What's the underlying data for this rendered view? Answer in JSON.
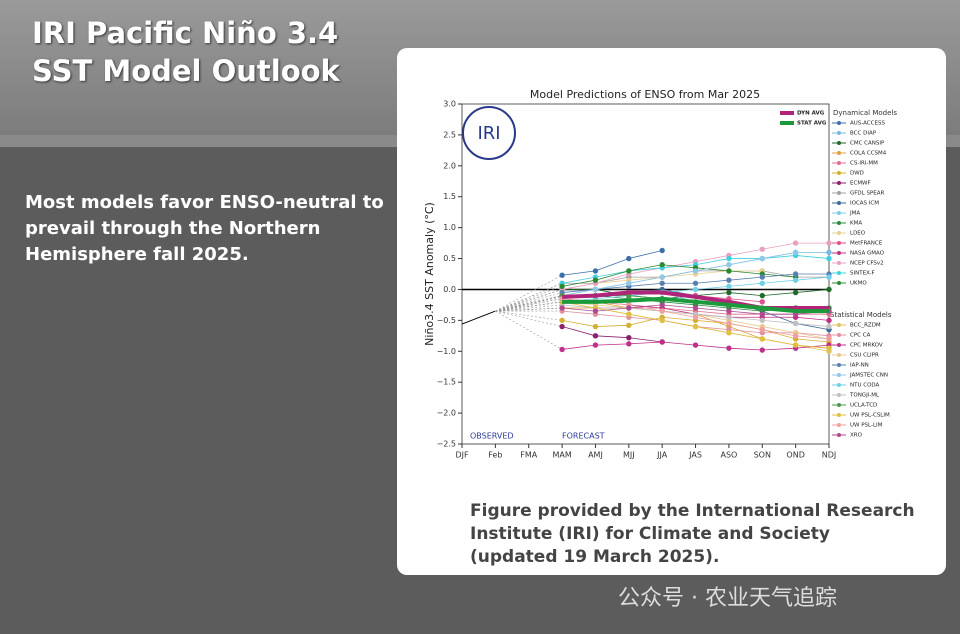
{
  "slide": {
    "title_lines": [
      "IRI Pacific Niño 3.4",
      "SST Model Outlook"
    ],
    "body_lines": [
      "Most models favor ENSO-neutral to",
      "prevail through the Northern",
      "Hemisphere fall 2025."
    ],
    "caption_lines": [
      "Figure provided by the International Research",
      "Institute (IRI) for Climate and Society",
      "(updated 19 March 2025)."
    ],
    "watermark": "公众号 · 农业天气追踪"
  },
  "chart_data": {
    "type": "line",
    "title": "Model Predictions of ENSO from Mar 2025",
    "y_label": "Niño3.4 SST Anomaly (°C)",
    "logo": "IRI",
    "annotations": [
      "OBSERVED",
      "FORECAST"
    ],
    "categories": [
      "DJF",
      "Feb",
      "FMA",
      "MAM",
      "AMJ",
      "MJJ",
      "JJA",
      "JAS",
      "ASO",
      "SON",
      "OND",
      "NDJ"
    ],
    "ylim": [
      -2.5,
      3.0
    ],
    "yticks": [
      {
        "value": -2.5,
        "label": "−2.5"
      },
      {
        "value": -2.0,
        "label": "−2.0"
      },
      {
        "value": -1.5,
        "label": "−1.5"
      },
      {
        "value": -1.0,
        "label": "−1.0"
      },
      {
        "value": -0.5,
        "label": "−0.5"
      },
      {
        "value": 0.0,
        "label": "0.0"
      },
      {
        "value": 0.5,
        "label": "0.5"
      },
      {
        "value": 1.0,
        "label": "1.0"
      },
      {
        "value": 1.5,
        "label": "1.5"
      },
      {
        "value": 2.0,
        "label": "2.0"
      },
      {
        "value": 2.5,
        "label": "2.5"
      },
      {
        "value": 3.0,
        "label": "3.0"
      }
    ],
    "observed": {
      "color": "#000000",
      "values": [
        -0.56,
        -0.35,
        null,
        null,
        null,
        null,
        null,
        null,
        null,
        null,
        null,
        null
      ]
    },
    "series": [
      {
        "name": "DYN AVG",
        "color": "#b0257a",
        "values": [
          null,
          null,
          null,
          -0.12,
          -0.1,
          -0.05,
          -0.05,
          -0.12,
          -0.2,
          -0.3,
          -0.3,
          -0.3
        ]
      },
      {
        "name": "STAT AVG",
        "color": "#1a9a3a",
        "values": [
          null,
          null,
          null,
          -0.2,
          -0.2,
          -0.18,
          -0.15,
          -0.2,
          -0.25,
          -0.3,
          -0.35,
          -0.35
        ]
      }
    ],
    "dynamical": {
      "title": "Dynamical Models",
      "series": [
        {
          "name": "AUS-ACCESS",
          "color": "#3d6fa8",
          "values": [
            null,
            null,
            null,
            0.23,
            0.3,
            0.5,
            0.63,
            null,
            null,
            null,
            null,
            null
          ]
        },
        {
          "name": "BCC DIAP",
          "color": "#7ab8e0",
          "values": [
            null,
            null,
            null,
            -0.1,
            0.0,
            0.1,
            0.2,
            0.3,
            0.4,
            0.5,
            0.6,
            0.6
          ]
        },
        {
          "name": "CMC CANSIP",
          "color": "#1f6b2a",
          "values": [
            null,
            null,
            null,
            0.0,
            0.0,
            -0.1,
            -0.15,
            -0.1,
            -0.05,
            -0.1,
            -0.05,
            0.0
          ]
        },
        {
          "name": "COLA CCSM4",
          "color": "#e0a040",
          "values": [
            null,
            null,
            null,
            -0.2,
            -0.2,
            -0.3,
            -0.35,
            -0.4,
            -0.6,
            -0.8,
            -0.9,
            -0.95
          ]
        },
        {
          "name": "CS-IRI-MM",
          "color": "#e07090",
          "values": [
            null,
            null,
            null,
            -0.3,
            -0.3,
            -0.3,
            -0.3,
            -0.35,
            -0.4,
            -0.4,
            -0.4,
            -0.4
          ]
        },
        {
          "name": "DWD",
          "color": "#d4b030",
          "values": [
            null,
            null,
            null,
            -0.5,
            -0.6,
            -0.58,
            -0.45,
            -0.5,
            -0.55,
            -0.65,
            -0.8,
            -0.85
          ]
        },
        {
          "name": "ECMWF",
          "color": "#8a2070",
          "values": [
            null,
            null,
            null,
            -0.6,
            -0.75,
            -0.78,
            -0.85,
            null,
            null,
            null,
            null,
            null
          ]
        },
        {
          "name": "GFDL SPEAR",
          "color": "#a0a0a0",
          "values": [
            null,
            null,
            null,
            0.1,
            0.1,
            0.2,
            0.2,
            0.3,
            0.3,
            0.3,
            0.2,
            0.2
          ]
        },
        {
          "name": "IOCAS ICM",
          "color": "#3a6a9a",
          "values": [
            null,
            null,
            null,
            -0.1,
            -0.1,
            -0.05,
            0.0,
            -0.1,
            -0.2,
            -0.35,
            -0.55,
            -0.65
          ]
        },
        {
          "name": "JMA",
          "color": "#80c8e8",
          "values": [
            null,
            null,
            null,
            -0.1,
            -0.1,
            -0.1,
            -0.05,
            -0.2,
            -0.25,
            -0.3,
            null,
            null
          ]
        },
        {
          "name": "KMA",
          "color": "#2a8a40",
          "values": [
            null,
            null,
            null,
            -0.1,
            -0.1,
            -0.15,
            -0.2,
            -0.25,
            -0.3,
            -0.35,
            -0.3,
            -0.3
          ]
        },
        {
          "name": "LDEO",
          "color": "#e8d090",
          "values": [
            null,
            null,
            null,
            0.0,
            0.1,
            0.15,
            0.2,
            0.25,
            0.3,
            0.3,
            null,
            null
          ]
        },
        {
          "name": "MetFRANCE",
          "color": "#e0508a",
          "values": [
            null,
            null,
            null,
            -0.1,
            -0.1,
            -0.05,
            -0.05,
            -0.1,
            -0.15,
            -0.2,
            null,
            null
          ]
        },
        {
          "name": "NASA GMAO",
          "color": "#c03080",
          "values": [
            null,
            null,
            null,
            -0.15,
            -0.2,
            -0.25,
            -0.3,
            -0.4,
            -0.45,
            -0.45,
            -0.45,
            -0.5
          ]
        },
        {
          "name": "NCEP CFSv2",
          "color": "#e8a0c0",
          "values": [
            null,
            null,
            null,
            0.0,
            0.1,
            0.25,
            0.35,
            0.45,
            0.55,
            0.65,
            0.75,
            0.75
          ]
        },
        {
          "name": "SINTEX-F",
          "color": "#40d0e0",
          "values": [
            null,
            null,
            null,
            0.1,
            0.2,
            0.3,
            0.35,
            0.4,
            0.5,
            0.5,
            0.55,
            0.5
          ]
        },
        {
          "name": "UKMO",
          "color": "#2a8a30",
          "values": [
            null,
            null,
            null,
            0.05,
            0.15,
            0.3,
            0.4,
            0.35,
            0.3,
            0.25,
            0.2,
            null
          ]
        }
      ]
    },
    "statistical": {
      "title": "Statistical Models",
      "series": [
        {
          "name": "BCC_RZDM",
          "color": "#e0c060",
          "values": [
            null,
            null,
            null,
            -0.3,
            -0.3,
            -0.4,
            -0.5,
            -0.6,
            -0.7,
            -0.8,
            -0.9,
            -1.0
          ]
        },
        {
          "name": "CPC CA",
          "color": "#e090a0",
          "values": [
            null,
            null,
            null,
            -0.35,
            -0.4,
            -0.45,
            -0.5,
            -0.6,
            -0.65,
            -0.7,
            -0.7,
            -0.75
          ]
        },
        {
          "name": "CPC MRKOV",
          "color": "#c0308a",
          "values": [
            null,
            null,
            null,
            -0.97,
            -0.9,
            -0.88,
            -0.85,
            -0.9,
            -0.95,
            -0.98,
            -0.95,
            -0.9
          ]
        },
        {
          "name": "CSU CLIPR",
          "color": "#e8c890",
          "values": [
            null,
            null,
            null,
            -0.2,
            -0.25,
            -0.3,
            -0.35,
            -0.4,
            -0.5,
            -0.6,
            -0.7,
            -0.8
          ]
        },
        {
          "name": "IAP-NN",
          "color": "#5a80b0",
          "values": [
            null,
            null,
            null,
            -0.05,
            0.0,
            0.05,
            0.1,
            0.1,
            0.15,
            0.2,
            0.25,
            0.25
          ]
        },
        {
          "name": "JAMSTEC CNN",
          "color": "#90c8e8",
          "values": [
            null,
            null,
            null,
            -0.1,
            0.0,
            0.1,
            0.2,
            0.3,
            0.4,
            0.5,
            0.6,
            null
          ]
        },
        {
          "name": "NTU CODA",
          "color": "#70d0e8",
          "values": [
            null,
            null,
            null,
            -0.2,
            -0.15,
            -0.1,
            -0.05,
            0.0,
            0.05,
            0.1,
            0.15,
            0.2
          ]
        },
        {
          "name": "TONGJI-ML",
          "color": "#c0c0c0",
          "values": [
            null,
            null,
            null,
            -0.25,
            -0.3,
            -0.3,
            -0.35,
            -0.4,
            -0.45,
            -0.5,
            -0.55,
            -0.6
          ]
        },
        {
          "name": "UCLA-TCD",
          "color": "#4a9a4a",
          "values": [
            null,
            null,
            null,
            -0.1,
            -0.1,
            -0.1,
            -0.15,
            -0.2,
            -0.25,
            -0.3,
            -0.3,
            -0.35
          ]
        },
        {
          "name": "UW PSL-CSLIM",
          "color": "#e0c040",
          "values": [
            null,
            null,
            null,
            -0.2,
            -0.3,
            -0.4,
            -0.5,
            -0.6,
            -0.7,
            -0.8,
            -0.9,
            -0.95
          ]
        },
        {
          "name": "UW PSL-LIM",
          "color": "#f0a0a0",
          "values": [
            null,
            null,
            null,
            -0.15,
            -0.2,
            -0.25,
            -0.35,
            -0.45,
            -0.55,
            -0.65,
            -0.75,
            -0.8
          ]
        },
        {
          "name": "XRO",
          "color": "#b04a90",
          "values": [
            null,
            null,
            null,
            -0.3,
            -0.35,
            -0.3,
            -0.25,
            -0.3,
            -0.35,
            -0.4,
            -0.4,
            -0.35
          ]
        }
      ]
    }
  }
}
